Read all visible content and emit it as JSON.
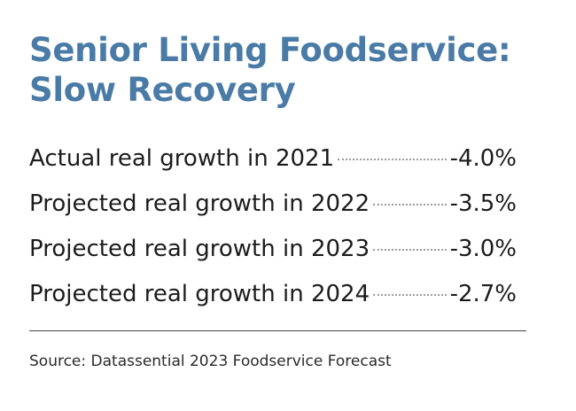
{
  "title": {
    "line1": "Senior Living Foodservice:",
    "line2": "Slow Recovery"
  },
  "rows": [
    {
      "label": "Actual real growth in 2021",
      "value": "-4.0%"
    },
    {
      "label": "Projected real growth in 2022",
      "value": "-3.5%"
    },
    {
      "label": "Projected real growth in 2023",
      "value": "-3.0%"
    },
    {
      "label": "Projected real growth in 2024",
      "value": "-2.7%"
    }
  ],
  "source": "Source: Datassential 2023 Foodservice Forecast",
  "colors": {
    "title": "#4a7ba7",
    "text": "#1c1c1c",
    "leader": "#9a9a9a",
    "rule": "#444444"
  }
}
